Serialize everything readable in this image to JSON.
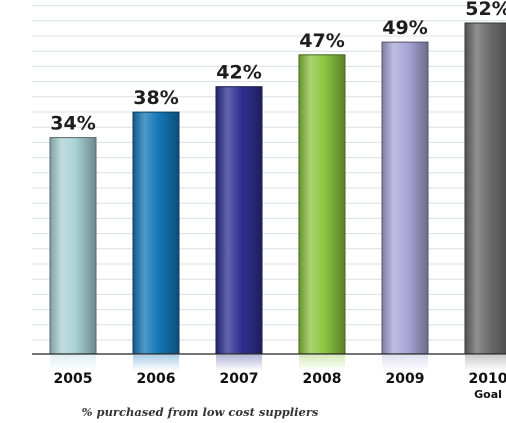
{
  "chart_data": {
    "type": "bar",
    "categories": [
      "2005",
      "2006",
      "2007",
      "2008",
      "2009",
      "2010"
    ],
    "category_sublabels": [
      "",
      "",
      "",
      "",
      "",
      "Goal"
    ],
    "values": [
      34,
      38,
      42,
      47,
      49,
      52
    ],
    "value_labels": [
      "34%",
      "38%",
      "42%",
      "47%",
      "49%",
      "52%"
    ],
    "caption": "% purchased from low cost suppliers",
    "bar_colors": [
      "#a9d3d6",
      "#1478b8",
      "#2e3190",
      "#8cc63f",
      "#a9a6d8",
      "#6b6b6b"
    ],
    "ylim": [
      0,
      60
    ],
    "grid": true
  }
}
